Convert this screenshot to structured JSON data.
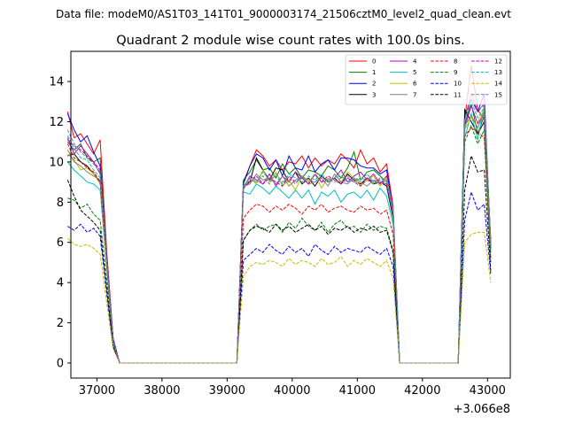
{
  "figure": {
    "suptitle": "Data file: modeM0/AS1T03_141T01_9000003174_21506cztM0_level2_quad_clean.evt"
  },
  "chart_data": {
    "type": "line",
    "title": "Quadrant 2 module wise count rates with 100.0s bins.",
    "xlabel": "",
    "ylabel": "",
    "x_offset_label": "+3.066e8",
    "xlim": [
      36600,
      43350
    ],
    "ylim": [
      -0.75,
      15.5
    ],
    "xticks": [
      37000,
      38000,
      39000,
      40000,
      41000,
      42000,
      43000
    ],
    "yticks": [
      0,
      2,
      4,
      6,
      8,
      10,
      12,
      14
    ],
    "grid": false,
    "legend": {
      "placement": "upper-right",
      "columns": 4
    },
    "segments": {
      "seg1_x": [
        36550,
        36650,
        36750,
        36850,
        36950,
        37050,
        37150,
        37250
      ],
      "seg2_x": [
        39250,
        39350,
        39450,
        39550,
        39650,
        39750,
        39850,
        39950,
        40050,
        40150,
        40250,
        40350,
        40450,
        40550,
        40650,
        40750,
        40850,
        40950,
        41050,
        41150,
        41250,
        41350,
        41450,
        41550
      ],
      "seg3_x": [
        42650,
        42750,
        42850,
        42950,
        43050
      ],
      "zero_gaps": [
        [
          37350,
          39150
        ],
        [
          41650,
          42550
        ]
      ]
    },
    "series": [
      {
        "name": "0",
        "color": "#ff0000",
        "dash": "solid",
        "seg1": [
          12.5,
          11.2,
          11.4,
          10.9,
          10.4,
          11.1,
          5.6,
          1.2
        ],
        "seg2": [
          9.0,
          9.8,
          10.6,
          10.3,
          9.8,
          10.1,
          9.6,
          10.0,
          9.9,
          10.3,
          9.7,
          10.2,
          9.8,
          10.1,
          9.9,
          10.4,
          10.1,
          9.7,
          10.6,
          9.9,
          10.2,
          9.5,
          9.9,
          7.8
        ],
        "seg3": [
          12.1,
          14.8,
          12.6,
          12.1,
          6.1
        ]
      },
      {
        "name": "1",
        "color": "#008000",
        "dash": "solid",
        "seg1": [
          11.0,
          10.6,
          10.9,
          10.2,
          10.0,
          10.2,
          5.4,
          1.1
        ],
        "seg2": [
          9.1,
          9.5,
          10.1,
          9.6,
          9.7,
          9.2,
          9.9,
          9.4,
          9.7,
          9.2,
          9.6,
          9.5,
          9.3,
          9.8,
          9.6,
          9.2,
          9.7,
          10.5,
          9.1,
          9.5,
          9.6,
          9.3,
          9.0,
          7.5
        ],
        "seg3": [
          11.9,
          12.9,
          11.4,
          12.3,
          5.9
        ]
      },
      {
        "name": "2",
        "color": "#0000ff",
        "dash": "solid",
        "seg1": [
          12.4,
          11.6,
          11.0,
          11.3,
          10.5,
          9.8,
          5.3,
          1.2
        ],
        "seg2": [
          8.9,
          9.8,
          10.4,
          10.2,
          9.6,
          10.1,
          9.3,
          10.3,
          9.7,
          9.6,
          10.3,
          9.5,
          9.9,
          10.1,
          9.6,
          10.2,
          10.2,
          10.1,
          9.8,
          9.7,
          9.7,
          9.4,
          9.6,
          7.6
        ],
        "seg3": [
          12.3,
          13.1,
          12.5,
          13.4,
          5.8
        ]
      },
      {
        "name": "3",
        "color": "#000000",
        "dash": "solid",
        "seg1": [
          10.3,
          10.4,
          10.0,
          9.8,
          9.4,
          9.0,
          5.0,
          1.1
        ],
        "seg2": [
          8.8,
          9.0,
          10.2,
          9.6,
          9.1,
          9.7,
          9.6,
          9.0,
          9.5,
          8.9,
          9.2,
          8.8,
          9.3,
          9.0,
          9.2,
          8.9,
          9.4,
          9.1,
          8.9,
          9.2,
          8.9,
          9.0,
          8.8,
          7.2
        ],
        "seg3": [
          12.6,
          12.0,
          11.4,
          12.0,
          5.7
        ]
      },
      {
        "name": "4",
        "color": "#bf00bf",
        "dash": "solid",
        "seg1": [
          11.2,
          10.4,
          10.8,
          10.4,
          10.0,
          9.4,
          5.2,
          1.1
        ],
        "seg2": [
          8.7,
          9.3,
          9.1,
          8.9,
          9.4,
          8.8,
          9.3,
          9.0,
          9.5,
          9.2,
          8.9,
          9.4,
          9.0,
          9.1,
          9.2,
          9.6,
          9.0,
          9.3,
          9.5,
          9.1,
          9.4,
          8.9,
          9.3,
          7.6
        ],
        "seg3": [
          11.7,
          12.8,
          11.9,
          12.4,
          5.8
        ]
      },
      {
        "name": "5",
        "color": "#00bfbf",
        "dash": "solid",
        "seg1": [
          10.0,
          9.6,
          9.3,
          9.0,
          8.9,
          8.6,
          4.8,
          1.0
        ],
        "seg2": [
          8.5,
          8.4,
          8.9,
          8.7,
          8.4,
          8.8,
          8.5,
          8.2,
          8.6,
          8.2,
          8.6,
          7.9,
          8.5,
          8.3,
          8.6,
          8.0,
          8.4,
          8.5,
          8.2,
          8.6,
          8.1,
          8.7,
          8.3,
          6.9
        ],
        "seg3": [
          11.2,
          12.4,
          11.1,
          12.8,
          5.5
        ]
      },
      {
        "name": "6",
        "color": "#bfbf00",
        "dash": "solid",
        "seg1": [
          10.4,
          10.1,
          9.6,
          9.7,
          9.4,
          8.9,
          4.9,
          1.0
        ],
        "seg2": [
          8.6,
          9.2,
          8.9,
          9.6,
          9.0,
          9.5,
          8.8,
          9.1,
          8.6,
          9.3,
          9.0,
          9.4,
          8.7,
          9.2,
          9.1,
          9.0,
          9.5,
          9.2,
          8.8,
          9.1,
          9.3,
          8.8,
          9.2,
          7.6
        ],
        "seg3": [
          11.6,
          12.2,
          12.0,
          12.6,
          5.9
        ]
      },
      {
        "name": "7",
        "color": "#808080",
        "dash": "solid",
        "seg1": [
          10.6,
          10.0,
          9.8,
          9.5,
          9.3,
          9.1,
          5.0,
          1.0
        ],
        "seg2": [
          8.8,
          8.9,
          9.4,
          9.1,
          9.2,
          8.9,
          9.3,
          8.8,
          9.1,
          9.3,
          8.9,
          9.0,
          9.2,
          8.8,
          9.4,
          9.0,
          8.9,
          9.2,
          9.0,
          8.8,
          9.1,
          9.0,
          8.9,
          7.4
        ],
        "seg3": [
          11.8,
          12.3,
          11.7,
          12.5,
          5.8
        ]
      },
      {
        "name": "8",
        "color": "#ff0000",
        "dash": "dashed",
        "seg1": [
          10.9,
          10.2,
          10.0,
          9.7,
          9.5,
          9.0,
          5.0,
          1.0
        ],
        "seg2": [
          7.2,
          7.6,
          7.9,
          7.8,
          7.5,
          7.8,
          7.6,
          7.9,
          7.7,
          7.4,
          7.8,
          7.6,
          7.9,
          7.5,
          7.7,
          7.8,
          7.6,
          7.5,
          7.8,
          7.6,
          7.7,
          7.4,
          7.6,
          6.4
        ],
        "seg3": [
          11.3,
          11.7,
          11.5,
          11.2,
          5.2
        ]
      },
      {
        "name": "9",
        "color": "#008000",
        "dash": "dashed",
        "seg1": [
          8.2,
          8.1,
          7.7,
          7.9,
          7.4,
          7.1,
          4.2,
          0.9
        ],
        "seg2": [
          6.1,
          6.6,
          6.9,
          6.6,
          6.8,
          6.9,
          6.5,
          7.0,
          6.7,
          7.2,
          6.8,
          6.6,
          7.0,
          6.5,
          6.9,
          7.1,
          6.7,
          6.8,
          6.5,
          6.9,
          6.6,
          6.8,
          6.7,
          5.6
        ],
        "seg3": [
          11.0,
          11.8,
          10.9,
          11.6,
          5.0
        ]
      },
      {
        "name": "10",
        "color": "#0000ff",
        "dash": "dashed",
        "seg1": [
          6.8,
          6.6,
          6.9,
          6.5,
          6.7,
          6.3,
          3.5,
          0.8
        ],
        "seg2": [
          5.1,
          5.4,
          5.7,
          5.5,
          5.9,
          5.6,
          5.4,
          5.8,
          5.5,
          5.7,
          5.3,
          5.9,
          5.6,
          5.4,
          5.8,
          5.5,
          5.7,
          5.6,
          5.5,
          5.8,
          5.6,
          5.4,
          5.7,
          4.8
        ],
        "seg3": [
          7.1,
          8.5,
          7.6,
          7.9,
          4.4
        ]
      },
      {
        "name": "11",
        "color": "#000000",
        "dash": "dashed",
        "seg1": [
          9.1,
          8.3,
          7.6,
          7.3,
          7.0,
          6.6,
          3.7,
          0.8
        ],
        "seg2": [
          6.1,
          6.6,
          6.8,
          6.7,
          6.5,
          6.9,
          6.6,
          6.8,
          6.5,
          6.7,
          6.9,
          6.6,
          6.8,
          6.4,
          6.7,
          6.6,
          6.8,
          6.5,
          6.7,
          6.6,
          6.8,
          6.5,
          6.6,
          5.5
        ],
        "seg3": [
          8.6,
          10.3,
          9.5,
          9.6,
          4.6
        ]
      },
      {
        "name": "12",
        "color": "#bf00bf",
        "dash": "dashed",
        "seg1": [
          11.1,
          10.8,
          10.6,
          10.3,
          10.0,
          9.6,
          5.3,
          1.1
        ],
        "seg2": [
          8.7,
          9.0,
          9.3,
          8.9,
          9.2,
          9.0,
          8.8,
          9.3,
          9.0,
          9.2,
          8.9,
          9.4,
          9.0,
          9.3,
          9.1,
          8.9,
          9.2,
          9.0,
          8.8,
          9.2,
          9.0,
          9.1,
          8.9,
          7.5
        ],
        "seg3": [
          11.8,
          13.4,
          12.5,
          12.9,
          6.0
        ]
      },
      {
        "name": "13",
        "color": "#00bfbf",
        "dash": "dashed",
        "seg1": [
          11.3,
          10.7,
          10.2,
          10.1,
          9.6,
          9.2,
          5.1,
          1.0
        ],
        "seg2": [
          8.8,
          9.2,
          9.0,
          9.5,
          9.1,
          9.3,
          8.9,
          9.4,
          9.2,
          9.0,
          9.3,
          9.1,
          9.4,
          9.0,
          9.2,
          9.3,
          9.0,
          9.2,
          9.1,
          9.4,
          9.0,
          9.2,
          9.1,
          7.7
        ],
        "seg3": [
          12.0,
          13.0,
          12.2,
          12.7,
          5.9
        ]
      },
      {
        "name": "14",
        "color": "#bfbf00",
        "dash": "dashed",
        "seg1": [
          6.2,
          5.9,
          5.8,
          5.9,
          5.7,
          5.4,
          3.0,
          0.7
        ],
        "seg2": [
          4.3,
          4.8,
          5.0,
          4.9,
          5.1,
          5.0,
          4.8,
          5.2,
          4.9,
          5.1,
          5.0,
          4.8,
          5.2,
          4.9,
          5.0,
          5.3,
          4.8,
          5.1,
          4.9,
          5.2,
          5.0,
          4.8,
          5.1,
          4.2
        ],
        "seg3": [
          6.0,
          6.4,
          6.5,
          6.5,
          4.0
        ]
      },
      {
        "name": "15",
        "color": "#808080",
        "dash": "dashed",
        "seg1": [
          11.6,
          10.9,
          10.5,
          10.2,
          9.9,
          9.5,
          5.2,
          1.1
        ],
        "seg2": [
          8.7,
          9.1,
          9.0,
          9.3,
          8.9,
          9.4,
          9.0,
          9.2,
          8.9,
          9.3,
          9.1,
          9.0,
          9.3,
          9.1,
          9.0,
          9.2,
          9.3,
          9.0,
          9.2,
          9.1,
          8.9,
          9.2,
          9.0,
          7.6
        ],
        "seg3": [
          12.1,
          13.4,
          12.6,
          12.8,
          6.0
        ]
      }
    ]
  }
}
